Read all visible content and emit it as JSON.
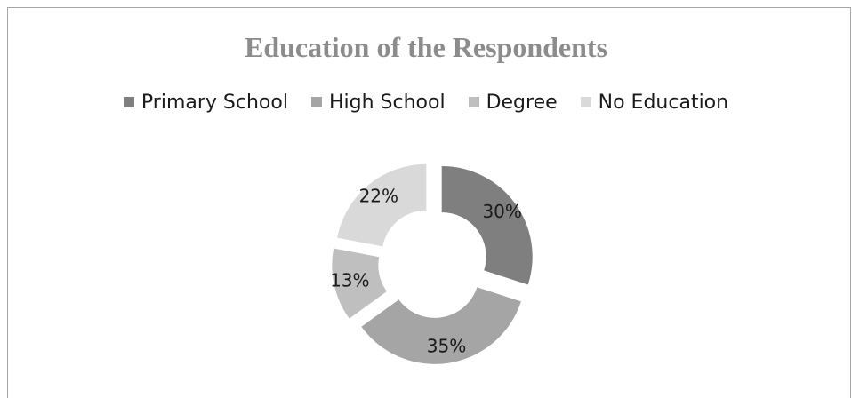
{
  "chart_data": {
    "type": "pie",
    "title": "Education of the Respondents",
    "categories": [
      "Primary School",
      "High School",
      "Degree",
      "No Education"
    ],
    "values": [
      30,
      35,
      13,
      22
    ],
    "data_labels": [
      "30%",
      "35%",
      "13%",
      "22%"
    ],
    "colors": [
      "#7f7f7f",
      "#a5a5a5",
      "#bfbfbf",
      "#d9d9d9"
    ],
    "legend": "top",
    "style": "exploded doughnut"
  }
}
